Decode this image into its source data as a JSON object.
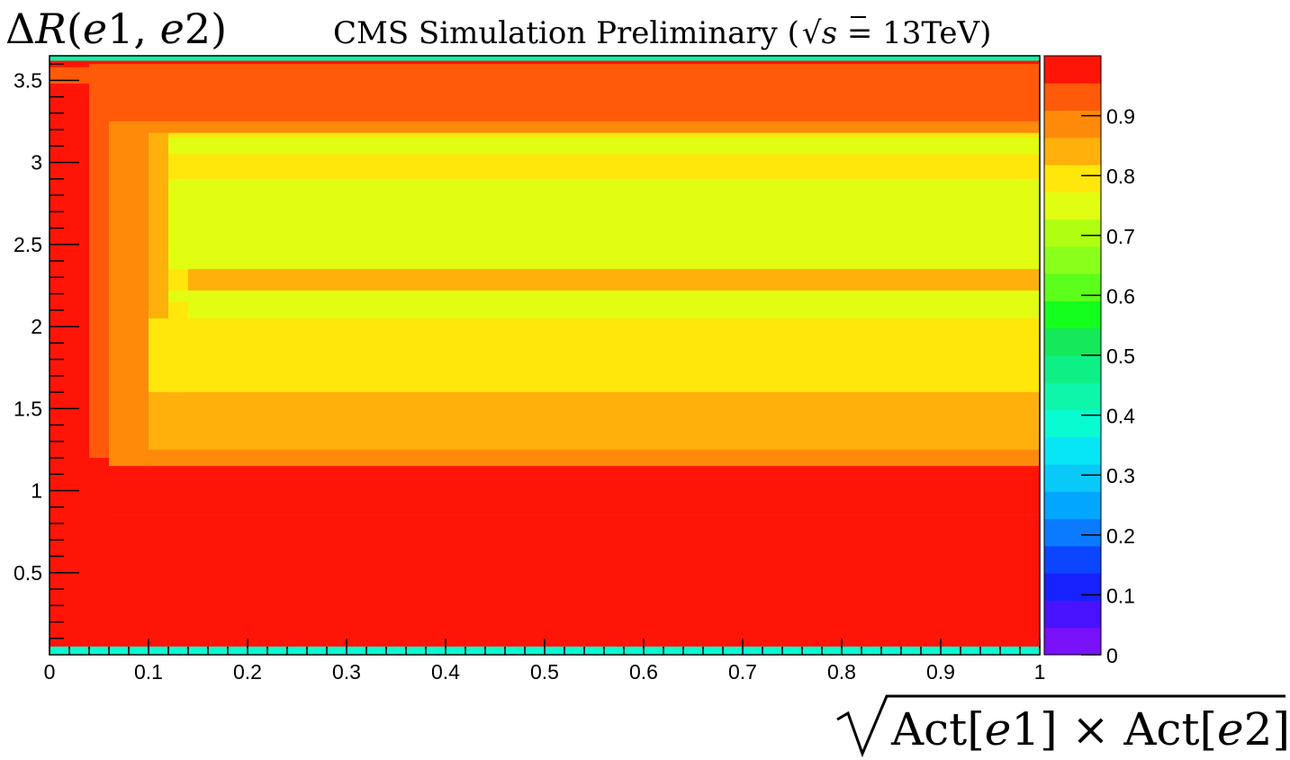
{
  "chart_data": {
    "type": "heatmap",
    "title": {
      "prefix": "CMS Simulation Preliminary (",
      "sqrt_arg": "s",
      "suffix": " = 13TeV)"
    },
    "ylabel": {
      "delta": "Δ",
      "var": "R",
      "open": "(",
      "a": "e",
      "a_idx": "1",
      "comma": ", ",
      "b": "e",
      "b_idx": "2",
      "close": ")"
    },
    "xlabel": {
      "part1": "Act[",
      "e1": "e",
      "e1_idx": "1",
      "times": "] × Act[",
      "e2": "e",
      "e2_idx": "2",
      "close": "]"
    },
    "xlim": [
      0,
      1
    ],
    "ylim": [
      0,
      3.65
    ],
    "zlim": [
      0,
      1
    ],
    "x_ticks": [
      "0",
      "0.1",
      "0.2",
      "0.3",
      "0.4",
      "0.5",
      "0.6",
      "0.7",
      "0.8",
      "0.9",
      "1"
    ],
    "y_ticks": [
      "0.5",
      "1",
      "1.5",
      "2",
      "2.5",
      "3",
      "3.5"
    ],
    "y_tick_values": [
      0.5,
      1,
      1.5,
      2,
      2.5,
      3,
      3.5
    ],
    "z_ticks": [
      "0",
      "0.1",
      "0.2",
      "0.3",
      "0.4",
      "0.5",
      "0.6",
      "0.7",
      "0.8",
      "0.9"
    ],
    "z_tick_values": [
      0,
      0.1,
      0.2,
      0.3,
      0.4,
      0.5,
      0.6,
      0.7,
      0.8,
      0.9
    ],
    "palette": [
      "#7a11fb",
      "#4913ff",
      "#1722ff",
      "#0b45ff",
      "#0a7bff",
      "#03a6ff",
      "#08c9f8",
      "#07e6f5",
      "#09fbd1",
      "#0df6a9",
      "#0eef85",
      "#15e85a",
      "#14ff1c",
      "#5bff1b",
      "#8aff1b",
      "#b0ff12",
      "#e1fd12",
      "#ffe60b",
      "#ffb00b",
      "#ff8a0a",
      "#ff5a0a",
      "#ff1508"
    ],
    "cells": [
      {
        "x": [
          0,
          1
        ],
        "y": [
          0.05,
          3.62
        ],
        "z": 0.97
      },
      {
        "x": [
          0.04,
          1
        ],
        "y": [
          1.2,
          3.6
        ],
        "z": 0.93
      },
      {
        "x": [
          0.06,
          1
        ],
        "y": [
          0.85,
          3.25
        ],
        "z": 0.88
      },
      {
        "x": [
          0.08,
          1
        ],
        "y": [
          1.2,
          3.2
        ],
        "z": 0.88
      },
      {
        "x": [
          0.1,
          1
        ],
        "y": [
          1.25,
          3.18
        ],
        "z": 0.82
      },
      {
        "x": [
          0.12,
          1
        ],
        "y": [
          1.6,
          3.18
        ],
        "z": 0.78
      },
      {
        "x": [
          0.12,
          1
        ],
        "y": [
          3.05,
          3.15
        ],
        "z": 0.74
      },
      {
        "x": [
          0.12,
          1
        ],
        "y": [
          2.35,
          2.9
        ],
        "z": 0.77
      },
      {
        "x": [
          0.12,
          1
        ],
        "y": [
          2.15,
          2.22
        ],
        "z": 0.77
      },
      {
        "x": [
          0.14,
          1
        ],
        "y": [
          2.05,
          2.15
        ],
        "z": 0.77
      },
      {
        "x": [
          0.1,
          1
        ],
        "y": [
          1.6,
          2.05
        ],
        "z": 0.81
      },
      {
        "x": [
          0.14,
          1
        ],
        "y": [
          2.22,
          2.35
        ],
        "z": 0.82
      },
      {
        "x": [
          0.14,
          1
        ],
        "y": [
          1.45,
          1.6
        ],
        "z": 0.85
      },
      {
        "x": [
          0.1,
          1
        ],
        "y": [
          1.2,
          1.25
        ],
        "z": 0.9
      },
      {
        "x": [
          0.1,
          1
        ],
        "y": [
          1.25,
          1.3
        ],
        "z": 0.86
      },
      {
        "x": [
          0,
          1
        ],
        "y": [
          0.05,
          0.85
        ],
        "z": 0.98
      },
      {
        "x": [
          0,
          1
        ],
        "y": [
          0.85,
          1.15
        ],
        "z": 0.96
      },
      {
        "x": [
          0,
          1
        ],
        "y": [
          3.48,
          3.58
        ],
        "z": 0.93
      },
      {
        "x": [
          0,
          1
        ],
        "y": [
          3.62,
          3.65
        ],
        "z": 0.45
      },
      {
        "x": [
          0,
          1
        ],
        "y": [
          0.0,
          0.05
        ],
        "z": 0.4
      }
    ]
  }
}
